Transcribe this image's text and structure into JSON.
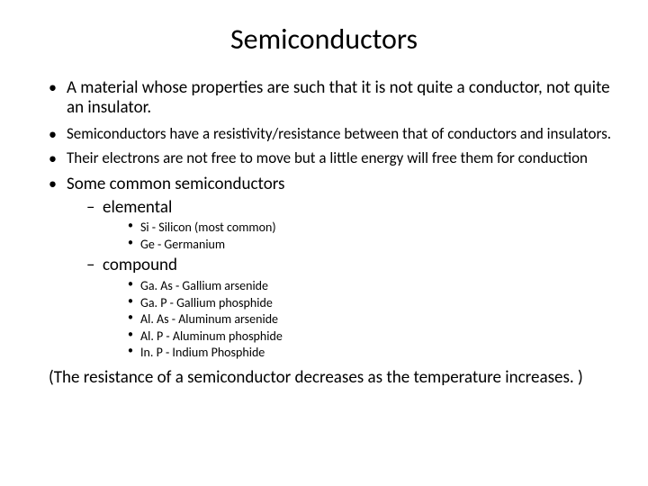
{
  "title": "Semiconductors",
  "bullets": {
    "b1": "A material whose properties are such that it is not quite a conductor, not quite an insulator.",
    "b2": "Semiconductors have a resistivity/resistance between that of conductors and insulators.",
    "b3": "Their electrons are not free to move but a little energy will free them for conduction",
    "b4": "Some common semiconductors",
    "sub_elemental": "elemental",
    "elemental_items": {
      "i1": "Si - Silicon (most common)",
      "i2": "Ge - Germanium"
    },
    "sub_compound": "compound",
    "compound_items": {
      "c1": "Ga. As - Gallium arsenide",
      "c2": "Ga. P - Gallium phosphide",
      "c3": "Al. As - Aluminum arsenide",
      "c4": "Al. P - Aluminum phosphide",
      "c5": "In. P - Indium Phosphide"
    }
  },
  "footer": "(The resistance of a semiconductor decreases as the temperature increases. )",
  "style": {
    "background_color": "#ffffff",
    "text_color": "#000000",
    "title_fontsize": 32,
    "body_fontsize": 19,
    "body_sm_fontsize": 17,
    "sub_fontsize": 14,
    "font_family": "Calibri"
  }
}
